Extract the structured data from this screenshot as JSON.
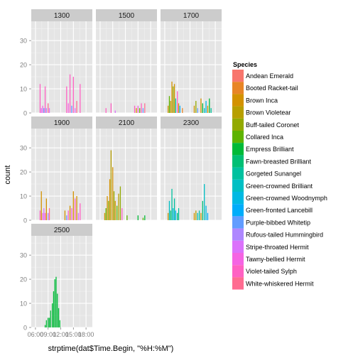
{
  "chart_data": {
    "type": "bar",
    "xlabel": "strptime(dat$Time.Begin, \"%H:%M\")",
    "ylabel": "count",
    "ylim": [
      0,
      38
    ],
    "y_ticks": [
      0,
      10,
      20,
      30
    ],
    "x_ticks": [
      "06:00",
      "09:00",
      "12:00",
      "15:00",
      "18:00"
    ],
    "x_tick_hours": [
      6,
      9,
      12,
      15,
      18
    ],
    "xlim_hours": [
      5.0,
      19.5
    ],
    "grid": "on",
    "legend_position": "right",
    "legend": {
      "title": "Species",
      "entries": [
        {
          "name": "Andean Emerald",
          "color": "#F8766D"
        },
        {
          "name": "Booted Racket-tail",
          "color": "#E88526"
        },
        {
          "name": "Brown Inca",
          "color": "#D39200"
        },
        {
          "name": "Brown Violetear",
          "color": "#B79F00"
        },
        {
          "name": "Buff-tailed Coronet",
          "color": "#93AA00"
        },
        {
          "name": "Collared Inca",
          "color": "#5EB300"
        },
        {
          "name": "Empress Brilliant",
          "color": "#00BA38"
        },
        {
          "name": "Fawn-breasted Brilliant",
          "color": "#00BF74"
        },
        {
          "name": "Gorgeted Sunangel",
          "color": "#00C19F"
        },
        {
          "name": "Green-crowned Brilliant",
          "color": "#00BFC4"
        },
        {
          "name": "Green-crowned Woodnymph",
          "color": "#00B9E3"
        },
        {
          "name": "Green-fronted Lancebill",
          "color": "#00ADFA"
        },
        {
          "name": "Purple-bibbed Whitetip",
          "color": "#619CFF"
        },
        {
          "name": "Rufous-tailed Hummingbird",
          "color": "#AE87FF"
        },
        {
          "name": "Stripe-throated Hermit",
          "color": "#DB72FB"
        },
        {
          "name": "Tawny-bellied Hermit",
          "color": "#F564E3"
        },
        {
          "name": "Violet-tailed Sylph",
          "color": "#FF61C3"
        },
        {
          "name": "White-whiskered Hermit",
          "color": "#FF6C91"
        }
      ]
    },
    "facets": [
      {
        "label": "1300",
        "bars": [
          {
            "x": 7.1,
            "y": 12,
            "species": "Violet-tailed Sylph"
          },
          {
            "x": 7.4,
            "y": 2,
            "species": "Stripe-throated Hermit"
          },
          {
            "x": 7.7,
            "y": 3,
            "species": "Tawny-bellied Hermit"
          },
          {
            "x": 8.0,
            "y": 2,
            "species": "Purple-bibbed Whitetip"
          },
          {
            "x": 8.3,
            "y": 11,
            "species": "Violet-tailed Sylph"
          },
          {
            "x": 8.6,
            "y": 2,
            "species": "Rufous-tailed Hummingbird"
          },
          {
            "x": 9.0,
            "y": 4,
            "species": "White-whiskered Hermit"
          },
          {
            "x": 9.3,
            "y": 2,
            "species": "Stripe-throated Hermit"
          },
          {
            "x": 13.4,
            "y": 11,
            "species": "Violet-tailed Sylph"
          },
          {
            "x": 13.8,
            "y": 4,
            "species": "Tawny-bellied Hermit"
          },
          {
            "x": 14.2,
            "y": 16,
            "species": "Violet-tailed Sylph"
          },
          {
            "x": 14.6,
            "y": 3,
            "species": "Purple-bibbed Whitetip"
          },
          {
            "x": 15.0,
            "y": 15,
            "species": "Violet-tailed Sylph"
          },
          {
            "x": 15.4,
            "y": 2,
            "species": "Stripe-throated Hermit"
          },
          {
            "x": 15.8,
            "y": 5,
            "species": "White-whiskered Hermit"
          },
          {
            "x": 16.6,
            "y": 12,
            "species": "Violet-tailed Sylph"
          }
        ]
      },
      {
        "label": "1500",
        "bars": [
          {
            "x": 7.4,
            "y": 2,
            "species": "Violet-tailed Sylph"
          },
          {
            "x": 8.6,
            "y": 4,
            "species": "Violet-tailed Sylph"
          },
          {
            "x": 9.6,
            "y": 1,
            "species": "Stripe-throated Hermit"
          },
          {
            "x": 14.2,
            "y": 3,
            "species": "Violet-tailed Sylph"
          },
          {
            "x": 14.6,
            "y": 2,
            "species": "Brown Inca"
          },
          {
            "x": 15.0,
            "y": 3,
            "species": "Tawny-bellied Hermit"
          },
          {
            "x": 15.4,
            "y": 2,
            "species": "Collared Inca"
          },
          {
            "x": 15.8,
            "y": 4,
            "species": "Violet-tailed Sylph"
          },
          {
            "x": 16.2,
            "y": 2,
            "species": "Purple-bibbed Whitetip"
          },
          {
            "x": 16.6,
            "y": 4,
            "species": "White-whiskered Hermit"
          }
        ]
      },
      {
        "label": "1700",
        "bars": [
          {
            "x": 6.8,
            "y": 3,
            "species": "Brown Inca"
          },
          {
            "x": 7.1,
            "y": 7,
            "species": "Collared Inca"
          },
          {
            "x": 7.4,
            "y": 5,
            "species": "Brown Violetear"
          },
          {
            "x": 7.7,
            "y": 13,
            "species": "Brown Inca"
          },
          {
            "x": 8.0,
            "y": 11,
            "species": "Buff-tailed Coronet"
          },
          {
            "x": 8.3,
            "y": 12,
            "species": "Brown Inca"
          },
          {
            "x": 8.6,
            "y": 6,
            "species": "Gorgeted Sunangel"
          },
          {
            "x": 9.0,
            "y": 9,
            "species": "Violet-tailed Sylph"
          },
          {
            "x": 9.3,
            "y": 4,
            "species": "Brown Inca"
          },
          {
            "x": 9.6,
            "y": 3,
            "species": "Green-fronted Lancebill"
          },
          {
            "x": 10.2,
            "y": 2,
            "species": "Booted Racket-tail"
          },
          {
            "x": 13.0,
            "y": 3,
            "species": "Brown Inca"
          },
          {
            "x": 13.4,
            "y": 5,
            "species": "Buff-tailed Coronet"
          },
          {
            "x": 13.8,
            "y": 2,
            "species": "Purple-bibbed Whitetip"
          },
          {
            "x": 14.6,
            "y": 6,
            "species": "Brown Inca"
          },
          {
            "x": 15.0,
            "y": 4,
            "species": "Empress Brilliant"
          },
          {
            "x": 15.4,
            "y": 2,
            "species": "Green-crowned Brilliant"
          },
          {
            "x": 15.8,
            "y": 5,
            "species": "Green-crowned Woodnymph"
          },
          {
            "x": 16.2,
            "y": 3,
            "species": "Brown Inca"
          },
          {
            "x": 16.6,
            "y": 6,
            "species": "Empress Brilliant"
          },
          {
            "x": 17.0,
            "y": 2,
            "species": "Gorgeted Sunangel"
          }
        ]
      },
      {
        "label": "1900",
        "bars": [
          {
            "x": 7.1,
            "y": 4,
            "species": "Violet-tailed Sylph"
          },
          {
            "x": 7.4,
            "y": 12,
            "species": "Brown Inca"
          },
          {
            "x": 7.7,
            "y": 3,
            "species": "Tawny-bellied Hermit"
          },
          {
            "x": 8.0,
            "y": 5,
            "species": "Stripe-throated Hermit"
          },
          {
            "x": 8.3,
            "y": 3,
            "species": "Violet-tailed Sylph"
          },
          {
            "x": 8.6,
            "y": 9,
            "species": "Brown Inca"
          },
          {
            "x": 9.0,
            "y": 3,
            "species": "Rufous-tailed Hummingbird"
          },
          {
            "x": 9.3,
            "y": 5,
            "species": "White-whiskered Hermit"
          },
          {
            "x": 13.0,
            "y": 4,
            "species": "Brown Inca"
          },
          {
            "x": 13.4,
            "y": 2,
            "species": "Purple-bibbed Whitetip"
          },
          {
            "x": 13.8,
            "y": 4,
            "species": "Violet-tailed Sylph"
          },
          {
            "x": 14.2,
            "y": 6,
            "species": "Brown Inca"
          },
          {
            "x": 14.6,
            "y": 5,
            "species": "Tawny-bellied Hermit"
          },
          {
            "x": 15.0,
            "y": 12,
            "species": "Brown Inca"
          },
          {
            "x": 15.4,
            "y": 9,
            "species": "Violet-tailed Sylph"
          },
          {
            "x": 15.8,
            "y": 10,
            "species": "Brown Inca"
          },
          {
            "x": 16.2,
            "y": 3,
            "species": "Stripe-throated Hermit"
          },
          {
            "x": 16.6,
            "y": 7,
            "species": "Violet-tailed Sylph"
          }
        ]
      },
      {
        "label": "2100",
        "bars": [
          {
            "x": 7.1,
            "y": 3,
            "species": "Brown Inca"
          },
          {
            "x": 7.4,
            "y": 5,
            "species": "Collared Inca"
          },
          {
            "x": 7.7,
            "y": 10,
            "species": "Brown Inca"
          },
          {
            "x": 8.0,
            "y": 8,
            "species": "Buff-tailed Coronet"
          },
          {
            "x": 8.3,
            "y": 17,
            "species": "Brown Inca"
          },
          {
            "x": 8.6,
            "y": 29,
            "species": "Brown Violetear"
          },
          {
            "x": 9.0,
            "y": 22,
            "species": "Brown Inca"
          },
          {
            "x": 9.3,
            "y": 12,
            "species": "Buff-tailed Coronet"
          },
          {
            "x": 9.6,
            "y": 8,
            "species": "Brown Inca"
          },
          {
            "x": 10.0,
            "y": 6,
            "species": "Collared Inca"
          },
          {
            "x": 10.4,
            "y": 11,
            "species": "Brown Violetear"
          },
          {
            "x": 10.8,
            "y": 14,
            "species": "Buff-tailed Coronet"
          },
          {
            "x": 11.2,
            "y": 5,
            "species": "Violet-tailed Sylph"
          },
          {
            "x": 12.4,
            "y": 2,
            "species": "Collared Inca"
          },
          {
            "x": 15.0,
            "y": 2,
            "species": "Empress Brilliant"
          },
          {
            "x": 16.2,
            "y": 1,
            "species": "Collared Inca"
          },
          {
            "x": 16.6,
            "y": 2,
            "species": "Empress Brilliant"
          }
        ]
      },
      {
        "label": "2300",
        "bars": [
          {
            "x": 6.8,
            "y": 3,
            "species": "Brown Inca"
          },
          {
            "x": 7.1,
            "y": 8,
            "species": "Green-crowned Brilliant"
          },
          {
            "x": 7.4,
            "y": 4,
            "species": "Fawn-breasted Brilliant"
          },
          {
            "x": 7.7,
            "y": 13,
            "species": "Gorgeted Sunangel"
          },
          {
            "x": 8.0,
            "y": 5,
            "species": "Green-crowned Woodnymph"
          },
          {
            "x": 8.3,
            "y": 9,
            "species": "Gorgeted Sunangel"
          },
          {
            "x": 8.6,
            "y": 4,
            "species": "Green-fronted Lancebill"
          },
          {
            "x": 9.0,
            "y": 3,
            "species": "Fawn-breasted Brilliant"
          },
          {
            "x": 9.3,
            "y": 5,
            "species": "Gorgeted Sunangel"
          },
          {
            "x": 13.0,
            "y": 3,
            "species": "Brown Inca"
          },
          {
            "x": 13.4,
            "y": 4,
            "species": "Brown Violetear"
          },
          {
            "x": 13.8,
            "y": 3,
            "species": "Green-crowned Brilliant"
          },
          {
            "x": 14.2,
            "y": 4,
            "species": "Gorgeted Sunangel"
          },
          {
            "x": 14.6,
            "y": 3,
            "species": "Brown Inca"
          },
          {
            "x": 15.0,
            "y": 8,
            "species": "Fawn-breasted Brilliant"
          },
          {
            "x": 15.4,
            "y": 15,
            "species": "Green-crowned Brilliant"
          },
          {
            "x": 15.8,
            "y": 6,
            "species": "Green-crowned Woodnymph"
          },
          {
            "x": 16.2,
            "y": 3,
            "species": "Green-fronted Lancebill"
          }
        ]
      },
      {
        "label": "2500",
        "bars": [
          {
            "x": 8.3,
            "y": 1,
            "species": "Empress Brilliant"
          },
          {
            "x": 8.6,
            "y": 3,
            "species": "Empress Brilliant"
          },
          {
            "x": 9.0,
            "y": 4,
            "species": "Empress Brilliant"
          },
          {
            "x": 9.3,
            "y": 4,
            "species": "Empress Brilliant"
          },
          {
            "x": 9.6,
            "y": 7,
            "species": "Empress Brilliant"
          },
          {
            "x": 10.0,
            "y": 10,
            "species": "Empress Brilliant"
          },
          {
            "x": 10.3,
            "y": 15,
            "species": "Empress Brilliant"
          },
          {
            "x": 10.6,
            "y": 20,
            "species": "Empress Brilliant"
          },
          {
            "x": 10.9,
            "y": 21,
            "species": "Empress Brilliant"
          },
          {
            "x": 11.2,
            "y": 14,
            "species": "Empress Brilliant"
          },
          {
            "x": 11.5,
            "y": 8,
            "species": "Empress Brilliant"
          },
          {
            "x": 11.8,
            "y": 3,
            "species": "Empress Brilliant"
          }
        ]
      }
    ]
  }
}
